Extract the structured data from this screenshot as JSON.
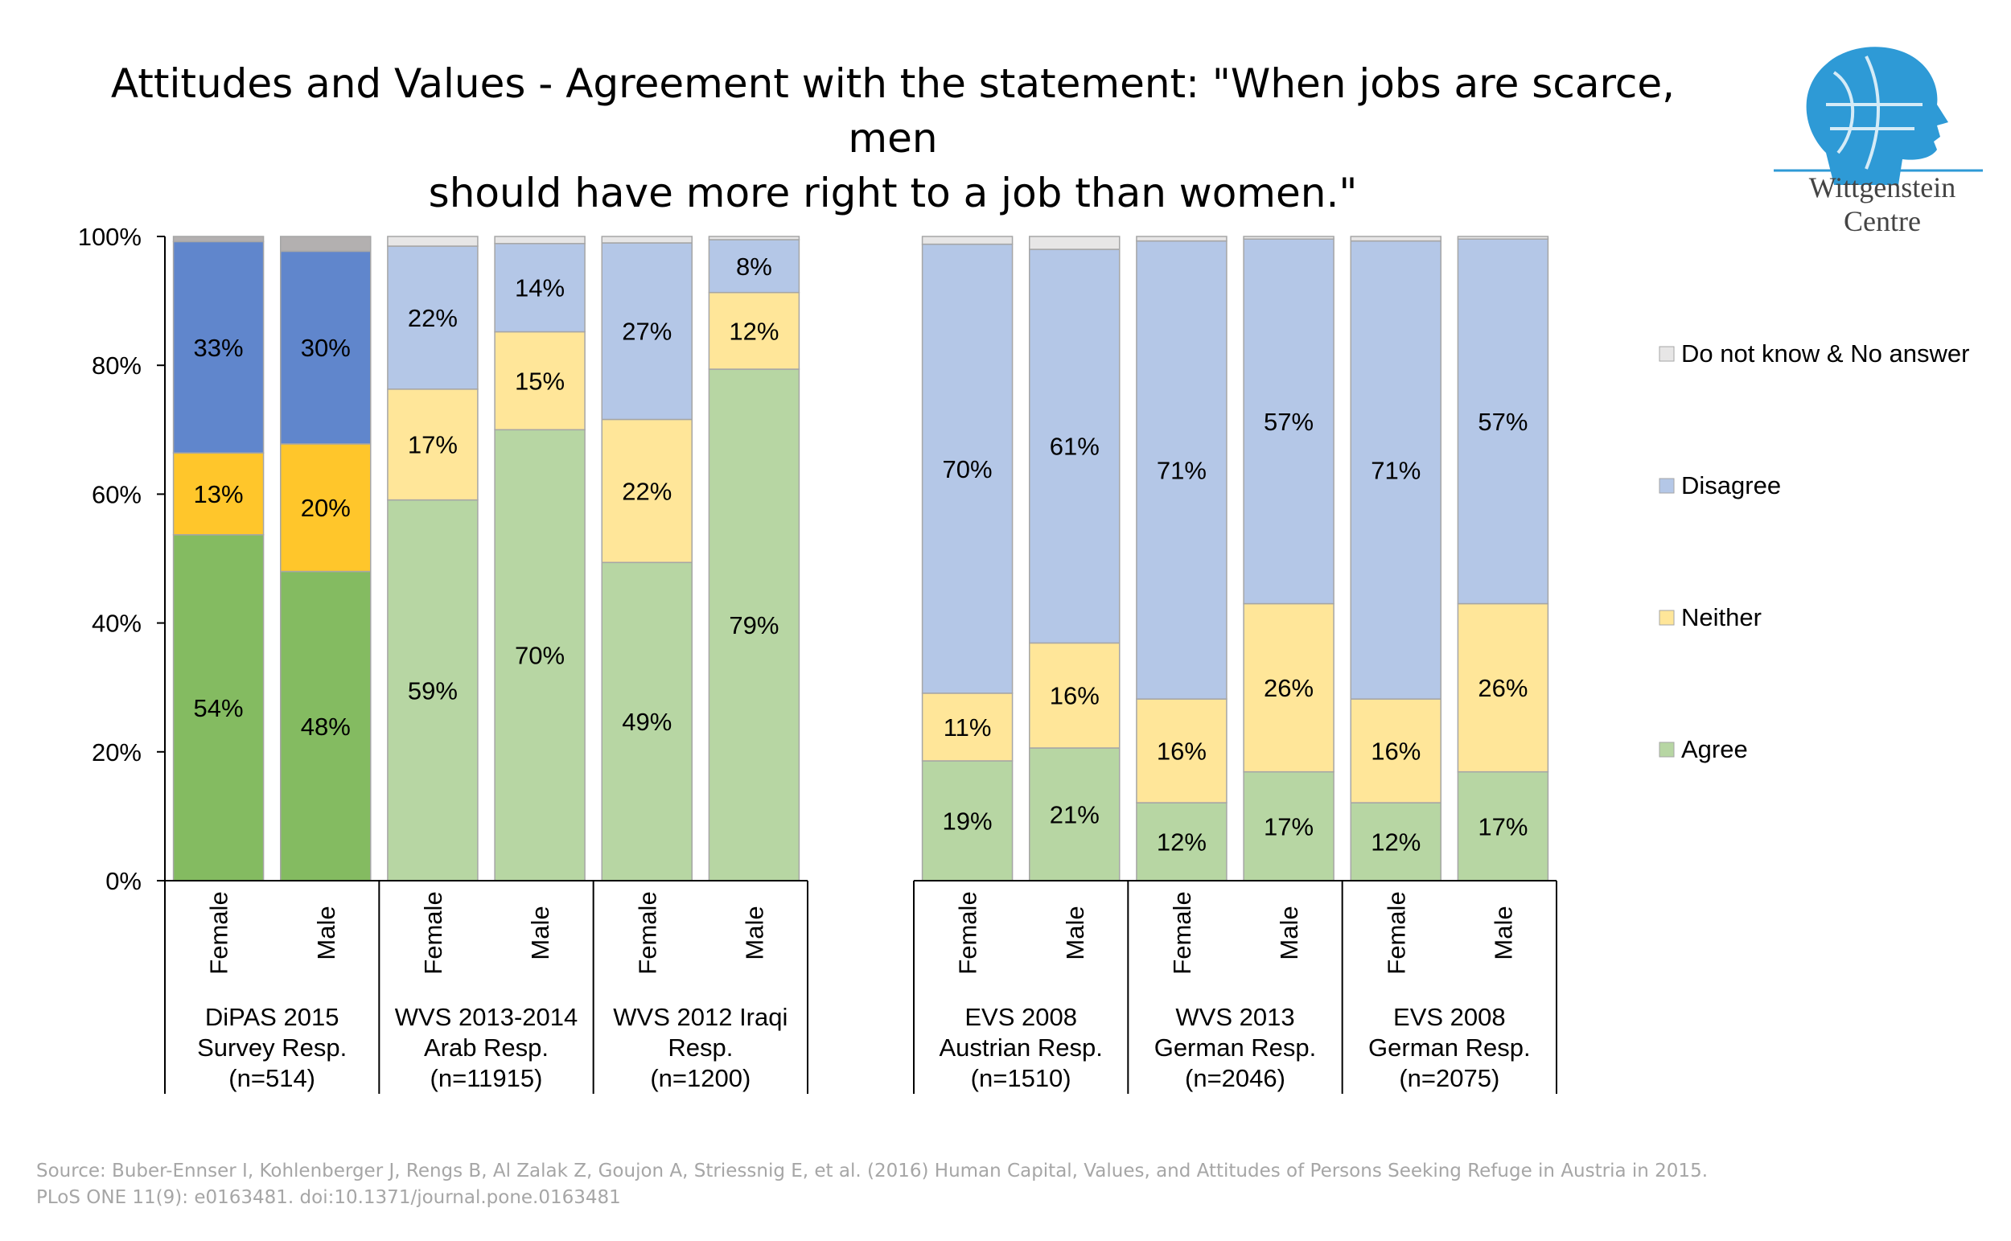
{
  "title_line1": "Attitudes and Values - Agreement with the statement: \"When jobs are scarce, men",
  "title_line2": "should have more right to a job than women.\"",
  "logo_text": "Wittgenstein Centre",
  "source_line1": "Source: Buber-Ennser I, Kohlenberger J, Rengs B, Al Zalak Z, Goujon A, Striessnig E, et al. (2016) Human Capital, Values, and Attitudes of Persons Seeking Refuge in Austria in 2015.",
  "source_line2": "PLoS ONE 11(9): e0163481. doi:10.1371/journal.pone.0163481",
  "chart_data": {
    "type": "bar",
    "stacked": true,
    "ylim": [
      0,
      100
    ],
    "yticks": [
      "0%",
      "20%",
      "40%",
      "60%",
      "80%",
      "100%"
    ],
    "legend_position": "right",
    "series": [
      {
        "name": "Agree",
        "color": "#b7d6a3"
      },
      {
        "name": "Neither",
        "color": "#ffe699"
      },
      {
        "name": "Disagree",
        "color": "#b4c7e7"
      },
      {
        "name": "Do not know & No answer",
        "color": "#e7e6e6"
      }
    ],
    "dipas_colors": {
      "Agree": "#84bb61",
      "Neither": "#ffc62b",
      "Disagree": "#6086cc",
      "Do not know & No answer": "#b3b0b0"
    },
    "groups": [
      {
        "label": [
          "DiPAS 2015",
          "Survey Resp.",
          "(n=514)"
        ],
        "style": "dipas",
        "bars": [
          {
            "category": "Female",
            "values": [
              53.7,
              12.7,
              32.8,
              0.8
            ],
            "labels": [
              "54%",
              "13%",
              "33%",
              ""
            ]
          },
          {
            "category": "Male",
            "values": [
              48.0,
              19.8,
              29.9,
              2.3
            ],
            "labels": [
              "48%",
              "20%",
              "30%",
              ""
            ]
          }
        ]
      },
      {
        "label": [
          "WVS 2013-2014",
          "Arab Resp.",
          "(n=11915)"
        ],
        "style": "light",
        "bars": [
          {
            "category": "Female",
            "values": [
              59.1,
              17.2,
              22.2,
              1.5
            ],
            "labels": [
              "59%",
              "17%",
              "22%",
              ""
            ]
          },
          {
            "category": "Male",
            "values": [
              70.0,
              15.2,
              13.7,
              1.1
            ],
            "labels": [
              "70%",
              "15%",
              "14%",
              ""
            ]
          }
        ]
      },
      {
        "label": [
          "WVS 2012 Iraqi",
          "Resp.",
          "(n=1200)"
        ],
        "style": "light",
        "bars": [
          {
            "category": "Female",
            "values": [
              49.4,
              22.2,
              27.4,
              1.0
            ],
            "labels": [
              "49%",
              "22%",
              "27%",
              ""
            ]
          },
          {
            "category": "Male",
            "values": [
              79.4,
              11.9,
              8.2,
              0.5
            ],
            "labels": [
              "79%",
              "12%",
              "8%",
              ""
            ]
          }
        ]
      },
      {
        "label": [
          "EVS 2008",
          "Austrian Resp.",
          "(n=1510)"
        ],
        "style": "light",
        "bars": [
          {
            "category": "Female",
            "values": [
              18.6,
              10.5,
              69.7,
              1.2
            ],
            "labels": [
              "19%",
              "11%",
              "70%",
              ""
            ]
          },
          {
            "category": "Male",
            "values": [
              20.6,
              16.3,
              61.1,
              2.0
            ],
            "labels": [
              "21%",
              "16%",
              "61%",
              ""
            ]
          }
        ]
      },
      {
        "label": [
          "WVS 2013",
          "German Resp.",
          "(n=2046)"
        ],
        "style": "light",
        "bars": [
          {
            "category": "Female",
            "values": [
              12.1,
              16.1,
              71.1,
              0.7
            ],
            "labels": [
              "12%",
              "16%",
              "71%",
              ""
            ]
          },
          {
            "category": "Male",
            "values": [
              16.9,
              26.1,
              56.6,
              0.4
            ],
            "labels": [
              "17%",
              "26%",
              "57%",
              ""
            ]
          }
        ]
      },
      {
        "label": [
          "EVS 2008",
          "German Resp.",
          "(n=2075)"
        ],
        "style": "light",
        "bars": [
          {
            "category": "Female",
            "values": [
              12.1,
              16.1,
              71.1,
              0.7
            ],
            "labels": [
              "12%",
              "16%",
              "71%",
              ""
            ]
          },
          {
            "category": "Male",
            "values": [
              16.9,
              26.1,
              56.6,
              0.4
            ],
            "labels": [
              "17%",
              "26%",
              "57%",
              ""
            ]
          }
        ]
      }
    ]
  }
}
